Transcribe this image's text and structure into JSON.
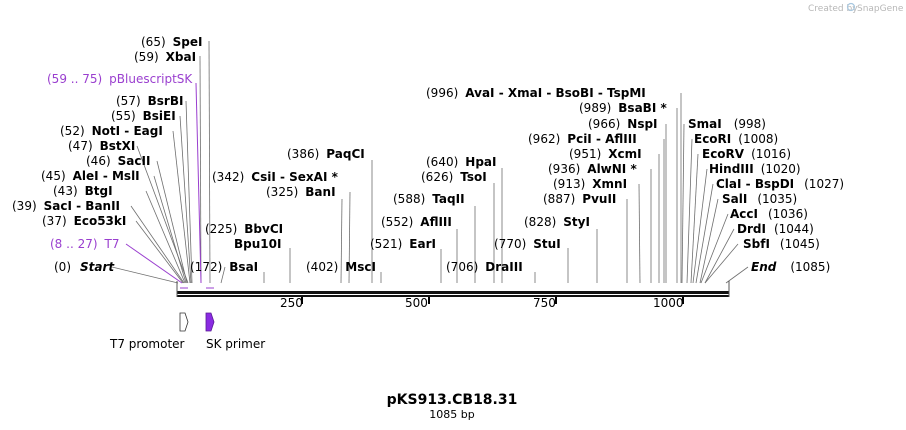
{
  "credit": {
    "text": "Created by",
    "brand": "SnapGene"
  },
  "map": {
    "name": "pKS913.CB18.31",
    "length_label": "1085 bp",
    "length_bp": 1085
  },
  "ruler_ticks": [
    "250",
    "500",
    "750",
    "1000"
  ],
  "features": [
    {
      "name": "T7 promoter",
      "start": 8,
      "end": 27,
      "direction": "forward",
      "color": "#ffffff"
    },
    {
      "name": "SK primer",
      "start": 59,
      "end": 75,
      "direction": "forward",
      "color": "#8a2be2"
    }
  ],
  "labels": [
    {
      "pos": "(0)",
      "name": "Start",
      "style": "bi"
    },
    {
      "pos": "(8 .. 27)",
      "name": "T7",
      "style": "purple"
    },
    {
      "pos": "(37)",
      "name": "Eco53kI",
      "style": "b"
    },
    {
      "pos": "(39)",
      "name": "SacI  - BanII",
      "style": "b"
    },
    {
      "pos": "(43)",
      "name": "BtgI",
      "style": "b"
    },
    {
      "pos": "(45)",
      "name": "AleI  - MslI",
      "style": "b"
    },
    {
      "pos": "(46)",
      "name": "SacII",
      "style": "b"
    },
    {
      "pos": "(47)",
      "name": "BstXI",
      "style": "b"
    },
    {
      "pos": "(52)",
      "name": "NotI  - EagI",
      "style": "b"
    },
    {
      "pos": "(55)",
      "name": "BsiEI",
      "style": "b"
    },
    {
      "pos": "(57)",
      "name": "BsrBI",
      "style": "b"
    },
    {
      "pos": "(59 .. 75)",
      "name": "pBluescriptSK",
      "style": "purple"
    },
    {
      "pos": "(59)",
      "name": "XbaI",
      "style": "b"
    },
    {
      "pos": "(65)",
      "name": "SpeI",
      "style": "b"
    },
    {
      "pos": "(172)",
      "name": "BsaI",
      "style": "b"
    },
    {
      "pos": "(225)",
      "name": "BbvCI",
      "style": "b"
    },
    {
      "pos": "",
      "name": "Bpu10I",
      "style": "b"
    },
    {
      "pos": "(342)",
      "name": "CsiI  - SexAI *",
      "style": "b"
    },
    {
      "pos": "(325)",
      "name": "BanI",
      "style": "b"
    },
    {
      "pos": "(386)",
      "name": "PaqCI",
      "style": "b"
    },
    {
      "pos": "(402)",
      "name": "MscI",
      "style": "b"
    },
    {
      "pos": "(521)",
      "name": "EarI",
      "style": "b"
    },
    {
      "pos": "(552)",
      "name": "AflIII",
      "style": "b"
    },
    {
      "pos": "(588)",
      "name": "TaqII",
      "style": "b"
    },
    {
      "pos": "(626)",
      "name": "TsoI",
      "style": "b"
    },
    {
      "pos": "(640)",
      "name": "HpaI",
      "style": "b"
    },
    {
      "pos": "(706)",
      "name": "DraIII",
      "style": "b"
    },
    {
      "pos": "(770)",
      "name": "StuI",
      "style": "b"
    },
    {
      "pos": "(828)",
      "name": "StyI",
      "style": "b"
    },
    {
      "pos": "(887)",
      "name": "PvuII",
      "style": "b"
    },
    {
      "pos": "(913)",
      "name": "XmnI",
      "style": "b"
    },
    {
      "pos": "(936)",
      "name": "AlwNI *",
      "style": "b"
    },
    {
      "pos": "(951)",
      "name": "XcmI",
      "style": "b"
    },
    {
      "pos": "(962)",
      "name": "PciI  - AflIII",
      "style": "b"
    },
    {
      "pos": "(966)",
      "name": "NspI",
      "style": "b"
    },
    {
      "pos": "(989)",
      "name": "BsaBI *",
      "style": "b"
    },
    {
      "pos": "(996)",
      "name": "AvaI  - XmaI  - BsoBI  - TspMI",
      "style": "b"
    },
    {
      "pos": "(998)",
      "name": "SmaI",
      "style": "b"
    },
    {
      "pos": "(1008)",
      "name": "EcoRI",
      "style": "b"
    },
    {
      "pos": "(1016)",
      "name": "EcoRV",
      "style": "b"
    },
    {
      "pos": "(1020)",
      "name": "HindIII",
      "style": "b"
    },
    {
      "pos": "(1027)",
      "name": "ClaI  - BspDI",
      "style": "b"
    },
    {
      "pos": "(1035)",
      "name": "SalI",
      "style": "b"
    },
    {
      "pos": "(1036)",
      "name": "AccI",
      "style": "b"
    },
    {
      "pos": "(1044)",
      "name": "DrdI",
      "style": "b"
    },
    {
      "pos": "(1045)",
      "name": "SbfI",
      "style": "b"
    },
    {
      "pos": "(1085)",
      "name": "End",
      "style": "bi"
    }
  ]
}
